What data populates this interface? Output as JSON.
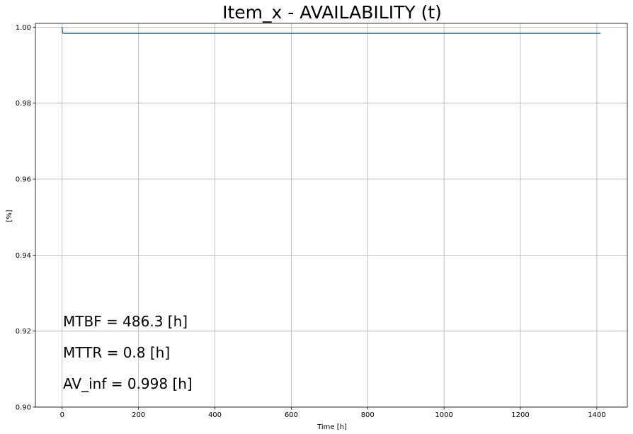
{
  "chart_data": {
    "type": "line",
    "title": "Item_x - AVAILABILITY (t)",
    "xlabel": "Time [h]",
    "ylabel": "[%]",
    "xlim": [
      -70,
      1480
    ],
    "ylim": [
      0.9,
      1.001
    ],
    "xticks": [
      0,
      200,
      400,
      600,
      800,
      1000,
      1200,
      1400
    ],
    "yticks": [
      0.9,
      0.92,
      0.94,
      0.96,
      0.98,
      1.0
    ],
    "xtick_labels": [
      "0",
      "200",
      "400",
      "600",
      "800",
      "1000",
      "1200",
      "1400"
    ],
    "ytick_labels": [
      "0.90",
      "0.92",
      "0.94",
      "0.96",
      "0.98",
      "1.00"
    ],
    "grid": true,
    "series": [
      {
        "color": "#1f77b4",
        "x": [
          0,
          0.5,
          1,
          2,
          3,
          5,
          10,
          50,
          200,
          600,
          1000,
          1410
        ],
        "y": [
          1.0,
          0.99905,
          0.99872,
          0.99845,
          0.99838,
          0.99836,
          0.99836,
          0.99836,
          0.99836,
          0.99836,
          0.99836,
          0.99836
        ]
      }
    ],
    "annotations": [
      "MTBF = 486.3 [h]",
      "MTTR = 0.8 [h]",
      "AV_inf = 0.998 [h]"
    ]
  }
}
